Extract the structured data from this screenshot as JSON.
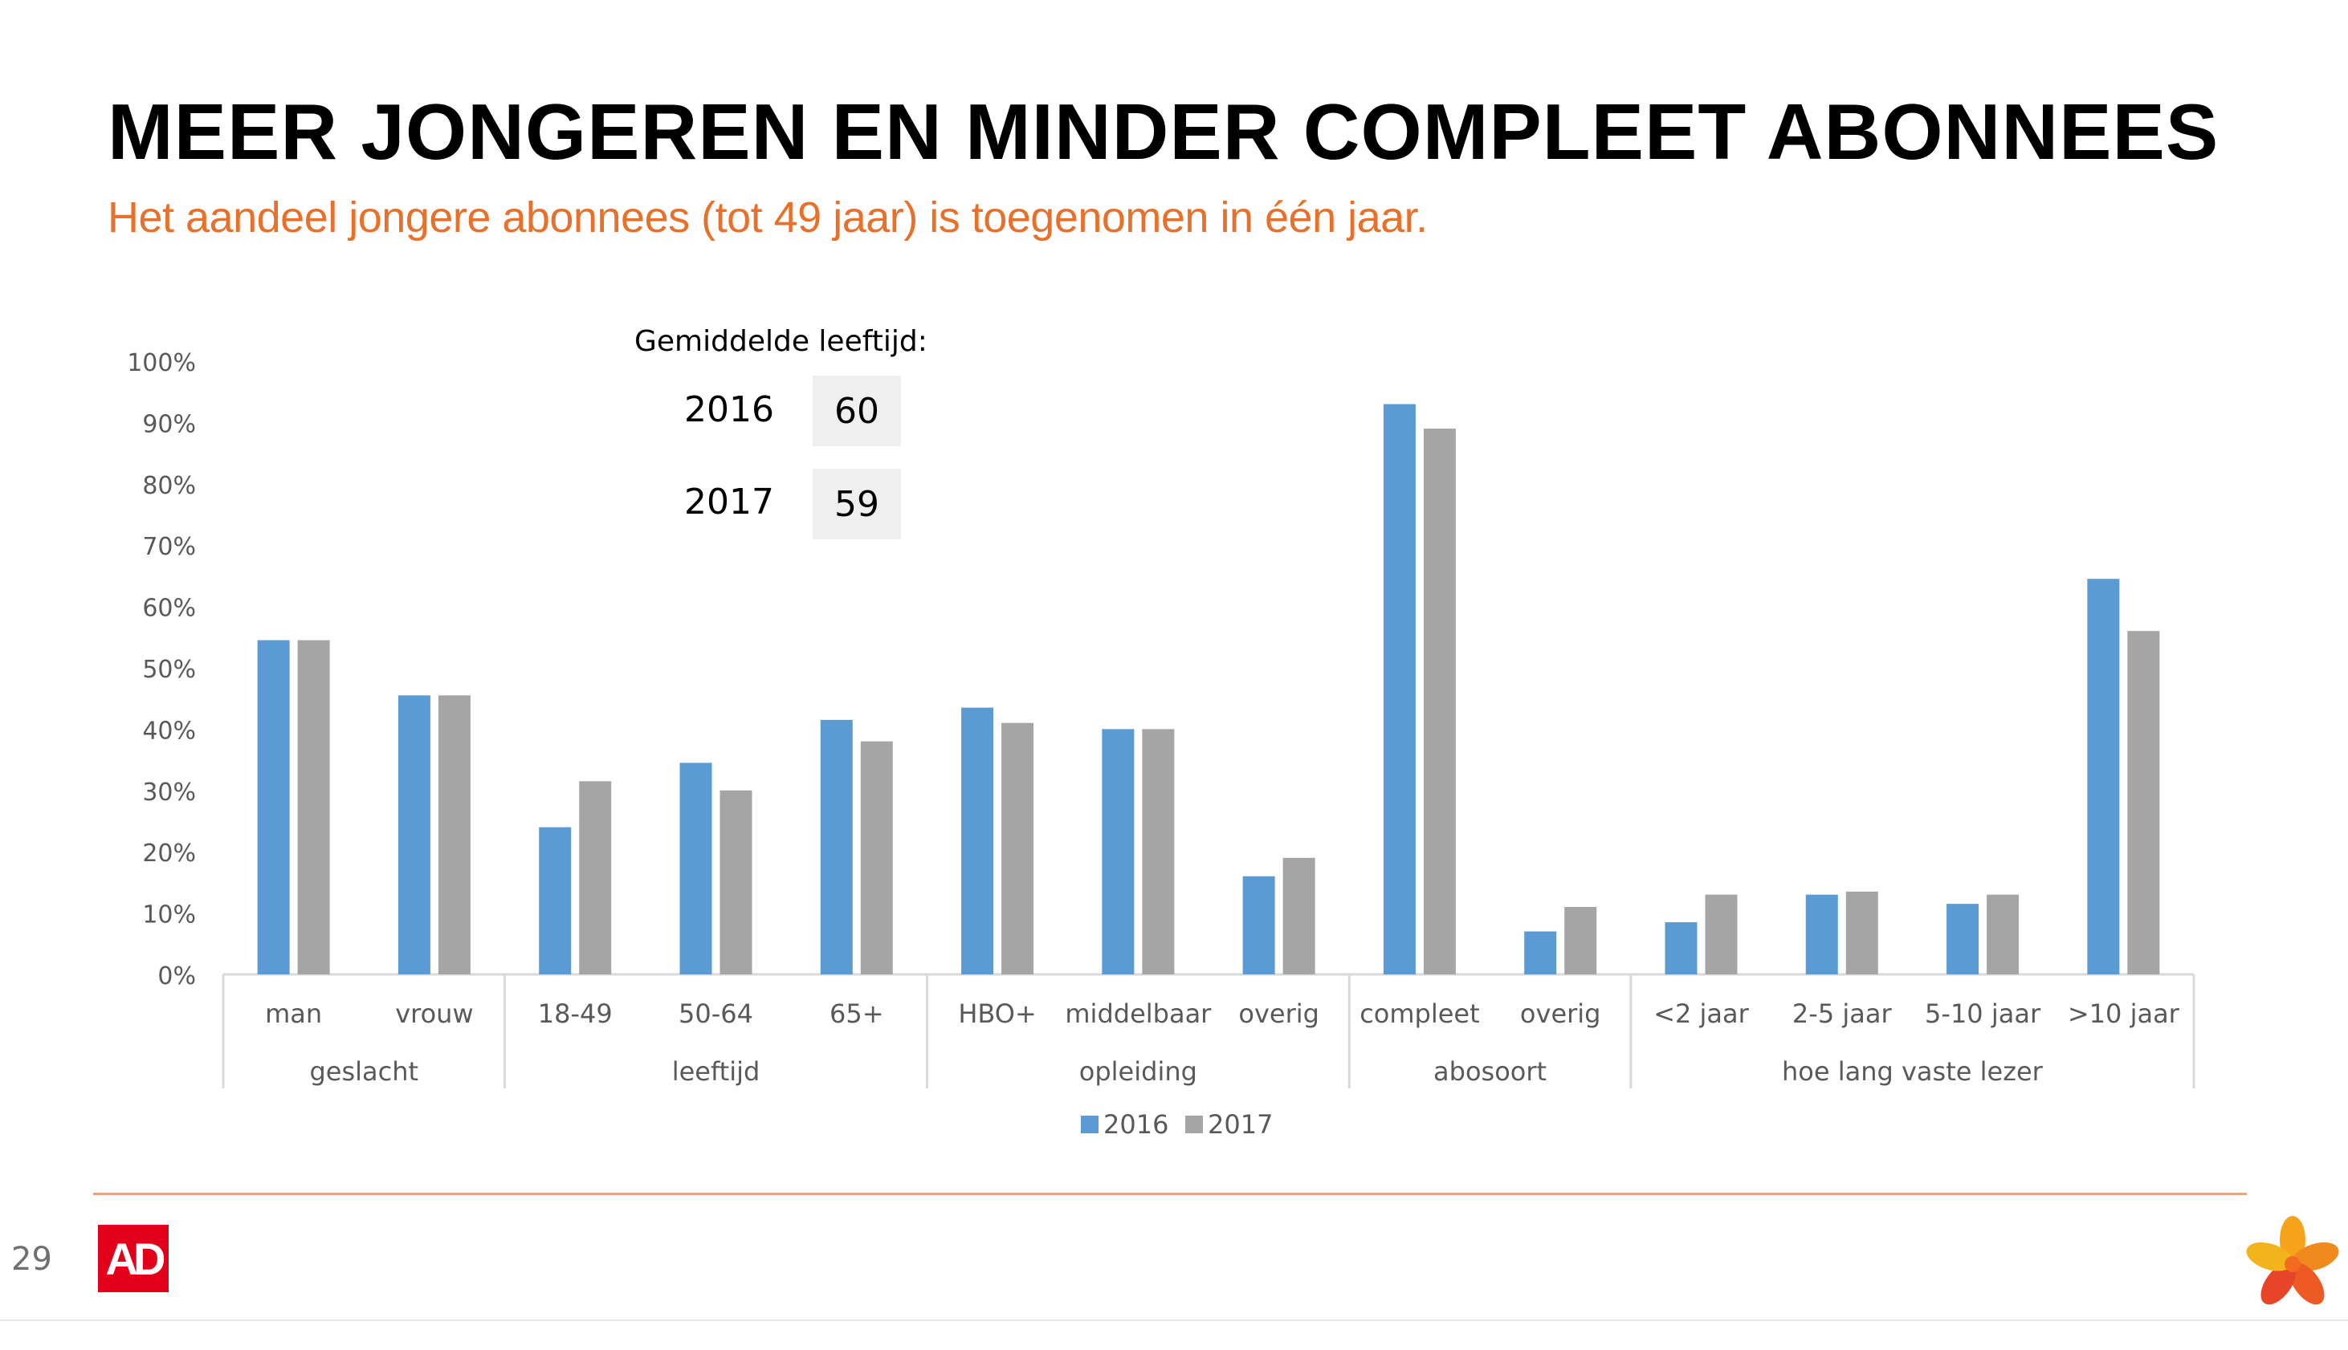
{
  "slide": {
    "title": "MEER JONGEREN EN MINDER COMPLEET ABONNEES",
    "subtitle": "Het aandeel jongere abonnees (tot 49 jaar) is toegenomen in één jaar.",
    "page_number": "29",
    "logo_text": "AD"
  },
  "inset": {
    "heading": "Gemiddelde leeftijd:",
    "rows": [
      {
        "year": "2016",
        "value": "60"
      },
      {
        "year": "2017",
        "value": "59"
      }
    ]
  },
  "colors": {
    "series_2016": "#5b9bd5",
    "series_2017": "#a5a5a5",
    "subtitle": "#e8702a",
    "axis": "#d9d9d9"
  },
  "chart_data": {
    "type": "bar",
    "ylim": [
      0,
      100
    ],
    "y_ticks": [
      "0%",
      "10%",
      "20%",
      "30%",
      "40%",
      "50%",
      "60%",
      "70%",
      "80%",
      "90%",
      "100%"
    ],
    "grid": false,
    "legend_position": "bottom",
    "categories": [
      "man",
      "vrouw",
      "18-49",
      "50-64",
      "65+",
      "HBO+",
      "middelbaar",
      "overig",
      "compleet",
      "overig",
      "<2 jaar",
      "2-5 jaar",
      "5-10 jaar",
      ">10 jaar"
    ],
    "groups": [
      {
        "label": "geslacht",
        "count": 2
      },
      {
        "label": "leeftijd",
        "count": 3
      },
      {
        "label": "opleiding",
        "count": 3
      },
      {
        "label": "abosoort",
        "count": 2
      },
      {
        "label": "hoe lang vaste lezer",
        "count": 4
      }
    ],
    "series": [
      {
        "name": "2016",
        "values": [
          54.5,
          45.5,
          24,
          34.5,
          41.5,
          43.5,
          40,
          16,
          93,
          7,
          8.5,
          13,
          11.5,
          64.5
        ]
      },
      {
        "name": "2017",
        "values": [
          54.5,
          45.5,
          31.5,
          30,
          38,
          41,
          40,
          19,
          89,
          11,
          13,
          13.5,
          13,
          56
        ]
      }
    ]
  }
}
